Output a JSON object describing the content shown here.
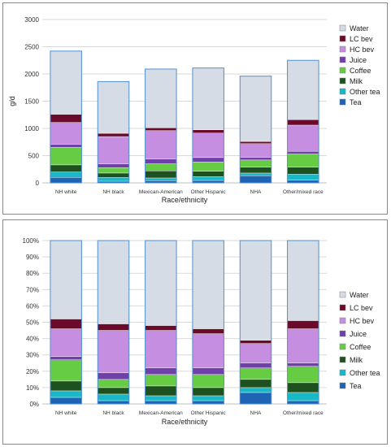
{
  "colors": {
    "Water": "#d5dce6",
    "LC bev": "#6b0a2a",
    "HC bev": "#c58ee0",
    "Juice": "#6f41a8",
    "Coffee": "#66cc44",
    "Milk": "#1d5220",
    "Other tea": "#18b8c8",
    "Tea": "#1f63b5",
    "bar_outline": "#4f8fd0",
    "grid": "#d9d9d9"
  },
  "chart_data": [
    {
      "type": "bar",
      "stacked": true,
      "title": "",
      "xlabel": "Race/ethnicity",
      "ylabel": "g/d",
      "ylim": [
        0,
        3000
      ],
      "yticks": [
        "0",
        "500",
        "1000",
        "1500",
        "2000",
        "2500",
        "3000"
      ],
      "ytick_values": [
        0,
        500,
        1000,
        1500,
        2000,
        2500,
        3000
      ],
      "grid": true,
      "legend_position": "right",
      "categories": [
        "NH white",
        "NH black",
        "Mexican-American",
        "Other Hispanic",
        "NHA",
        "Other/mixed race"
      ],
      "series": [
        {
          "name": "Tea",
          "values": [
            100,
            30,
            40,
            45,
            130,
            50
          ]
        },
        {
          "name": "Other tea",
          "values": [
            100,
            70,
            50,
            70,
            50,
            110
          ]
        },
        {
          "name": "Milk",
          "values": [
            130,
            80,
            130,
            100,
            110,
            130
          ]
        },
        {
          "name": "Coffee",
          "values": [
            320,
            100,
            130,
            170,
            130,
            240
          ]
        },
        {
          "name": "Juice",
          "values": [
            60,
            70,
            90,
            80,
            50,
            50
          ]
        },
        {
          "name": "HC bev",
          "values": [
            400,
            500,
            520,
            450,
            250,
            480
          ]
        },
        {
          "name": "LC bev",
          "values": [
            150,
            60,
            50,
            60,
            40,
            100
          ]
        },
        {
          "name": "Water",
          "values": [
            1160,
            950,
            1080,
            1135,
            1200,
            1090
          ]
        }
      ]
    },
    {
      "type": "bar",
      "stacked": true,
      "title": "",
      "xlabel": "Race/ethnicity",
      "ylabel": "",
      "ylim": [
        0,
        100
      ],
      "yticks": [
        "0%",
        "10%",
        "20%",
        "30%",
        "40%",
        "50%",
        "60%",
        "70%",
        "80%",
        "90%",
        "100%"
      ],
      "ytick_values": [
        0,
        10,
        20,
        30,
        40,
        50,
        60,
        70,
        80,
        90,
        100
      ],
      "grid": true,
      "legend_position": "right",
      "categories": [
        "NH white",
        "NH black",
        "Mexican-American",
        "Other Hispanic",
        "NHA",
        "Other/mixed race"
      ],
      "series": [
        {
          "name": "Tea",
          "values": [
            4,
            2,
            2,
            2,
            7,
            2
          ]
        },
        {
          "name": "Other tea",
          "values": [
            4,
            4,
            3,
            3,
            3,
            5
          ]
        },
        {
          "name": "Milk",
          "values": [
            6,
            4,
            6,
            5,
            5,
            6
          ]
        },
        {
          "name": "Coffee",
          "values": [
            13,
            5,
            7,
            8,
            7,
            10
          ]
        },
        {
          "name": "Juice",
          "values": [
            2,
            4,
            4,
            4,
            3,
            2
          ]
        },
        {
          "name": "HC bev",
          "values": [
            17,
            26,
            23,
            21,
            12,
            21
          ]
        },
        {
          "name": "LC bev",
          "values": [
            6,
            4,
            3,
            3,
            2,
            5
          ]
        },
        {
          "name": "Water",
          "values": [
            48,
            51,
            52,
            54,
            61,
            49
          ]
        }
      ]
    }
  ]
}
